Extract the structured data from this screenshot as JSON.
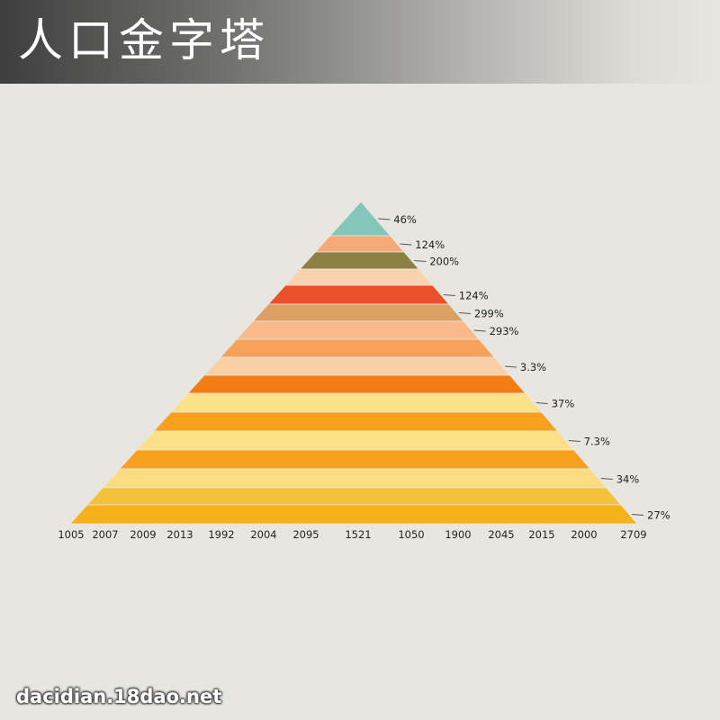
{
  "header": {
    "title": "人口金字塔"
  },
  "watermark": "dacidian.18dao.net",
  "colors": {
    "background": "#e8e6e1",
    "leader_line": "#555555",
    "label_text": "#222222"
  },
  "chart_data": {
    "type": "bar",
    "orientation": "stacked-pyramid",
    "title": "人口金字塔",
    "grid": false,
    "legend": "none",
    "x_tick_labels": [
      "1005",
      "2007",
      "2009",
      "2013",
      "1992",
      "2004",
      "2095",
      "1521",
      "1050",
      "1900",
      "2045",
      "2015",
      "2000",
      "2709"
    ],
    "bands": [
      {
        "color": "#84c6b9"
      },
      {
        "color": "#f5a878"
      },
      {
        "color": "#8c8044"
      },
      {
        "color": "#f9d2ae"
      },
      {
        "color": "#e9512a"
      },
      {
        "color": "#dca062"
      },
      {
        "color": "#f8ba8a"
      },
      {
        "color": "#f6a25a"
      },
      {
        "color": "#f9cfa6"
      },
      {
        "color": "#f47c14"
      },
      {
        "color": "#fbe08a"
      },
      {
        "color": "#f7a01e"
      },
      {
        "color": "#fbe08a"
      },
      {
        "color": "#f7a01e"
      },
      {
        "color": "#fbdc80"
      },
      {
        "color": "#f3c23a"
      },
      {
        "color": "#f6b21a"
      }
    ],
    "annotations": [
      {
        "label": "46%",
        "band": 0
      },
      {
        "label": "124%",
        "band": 1
      },
      {
        "label": "200%",
        "band": 2
      },
      {
        "label": "124%",
        "band": 4
      },
      {
        "label": "299%",
        "band": 5
      },
      {
        "label": "293%",
        "band": 6
      },
      {
        "label": "3.3%",
        "band": 8
      },
      {
        "label": "37%",
        "band": 10
      },
      {
        "label": "7.3%",
        "band": 12
      },
      {
        "label": "34%",
        "band": 14
      },
      {
        "label": "27%",
        "band": 16
      }
    ]
  }
}
